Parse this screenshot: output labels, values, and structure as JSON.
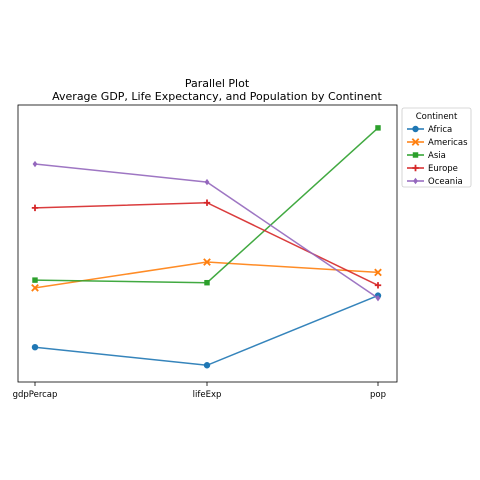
{
  "chart_data": {
    "type": "line",
    "title": "Parallel Plot",
    "subtitle": "Average GDP, Life Expectancy, and Population by Continent",
    "categories": [
      "gdpPercap",
      "lifeExp",
      "pop"
    ],
    "ylim": [
      0,
      1
    ],
    "grid": false,
    "legend": {
      "title": "Continent",
      "placement": "outside-right-top"
    },
    "series": [
      {
        "name": "Africa",
        "color": "#1f77b4",
        "marker": "circle",
        "values": [
          0.1,
          0.03,
          0.3
        ]
      },
      {
        "name": "Americas",
        "color": "#ff7f0e",
        "marker": "x",
        "values": [
          0.33,
          0.43,
          0.39
        ]
      },
      {
        "name": "Asia",
        "color": "#2ca02c",
        "marker": "square",
        "values": [
          0.36,
          0.35,
          0.95
        ]
      },
      {
        "name": "Europe",
        "color": "#d62728",
        "marker": "plus",
        "values": [
          0.64,
          0.66,
          0.34
        ]
      },
      {
        "name": "Oceania",
        "color": "#9467bd",
        "marker": "diamond",
        "values": [
          0.81,
          0.74,
          0.29
        ]
      }
    ]
  }
}
